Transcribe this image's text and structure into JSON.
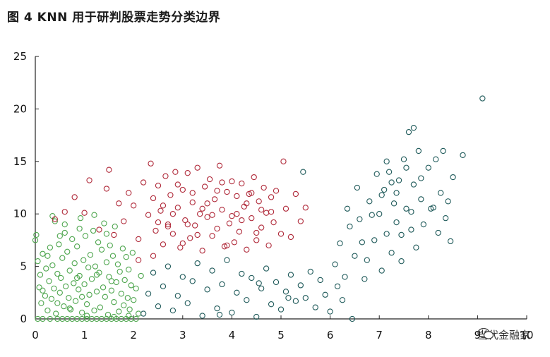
{
  "title": "图 4  KNN 用于研判股票走势分类边界",
  "watermark": {
    "text": "当代金融家"
  },
  "chart_data": {
    "type": "scatter",
    "title": "图 4  KNN 用于研判股票走势分类边界",
    "xlabel": "",
    "ylabel": "",
    "xlim": [
      0,
      10
    ],
    "ylim": [
      0,
      25
    ],
    "x_ticks": [
      "0",
      "1",
      "2",
      "3",
      "4",
      "5",
      "6",
      "7",
      "8",
      "9",
      "10"
    ],
    "y_ticks": [
      "0",
      "5",
      "10",
      "15",
      "20",
      "25"
    ],
    "grid": false,
    "legend": "none",
    "series": [
      {
        "color": "#4ea64e",
        "points": [
          [
            0.05,
            0.0
          ],
          [
            0.15,
            0.0
          ],
          [
            0.3,
            0.0
          ],
          [
            0.45,
            0.0
          ],
          [
            0.55,
            0.0
          ],
          [
            0.65,
            0.0
          ],
          [
            0.75,
            0.0
          ],
          [
            0.85,
            0.0
          ],
          [
            0.95,
            0.0
          ],
          [
            1.05,
            0.0
          ],
          [
            1.15,
            0.0
          ],
          [
            1.25,
            0.0
          ],
          [
            1.35,
            0.0
          ],
          [
            1.45,
            0.0
          ],
          [
            1.55,
            0.0
          ],
          [
            1.65,
            0.0
          ],
          [
            1.75,
            0.0
          ],
          [
            1.85,
            0.0
          ],
          [
            1.95,
            0.0
          ],
          [
            2.05,
            0.0
          ],
          [
            0.0,
            7.5
          ],
          [
            0.02,
            8.0
          ],
          [
            0.05,
            5.5
          ],
          [
            0.08,
            3.0
          ],
          [
            0.1,
            4.2
          ],
          [
            0.12,
            1.5
          ],
          [
            0.15,
            6.2
          ],
          [
            0.2,
            2.2
          ],
          [
            0.22,
            4.8
          ],
          [
            0.25,
            0.8
          ],
          [
            0.28,
            3.6
          ],
          [
            0.3,
            6.8
          ],
          [
            0.33,
            1.9
          ],
          [
            0.35,
            5.1
          ],
          [
            0.38,
            2.9
          ],
          [
            0.4,
            9.3
          ],
          [
            0.42,
            0.5
          ],
          [
            0.45,
            4.3
          ],
          [
            0.48,
            7.1
          ],
          [
            0.5,
            2.5
          ],
          [
            0.52,
            3.9
          ],
          [
            0.55,
            5.8
          ],
          [
            0.58,
            1.2
          ],
          [
            0.6,
            8.2
          ],
          [
            0.62,
            3.1
          ],
          [
            0.65,
            6.4
          ],
          [
            0.68,
            2.0
          ],
          [
            0.7,
            4.6
          ],
          [
            0.72,
            0.9
          ],
          [
            0.75,
            7.6
          ],
          [
            0.78,
            3.4
          ],
          [
            0.8,
            5.3
          ],
          [
            0.82,
            1.7
          ],
          [
            0.85,
            6.9
          ],
          [
            0.88,
            2.8
          ],
          [
            0.9,
            4.1
          ],
          [
            0.92,
            9.6
          ],
          [
            0.95,
            0.6
          ],
          [
            0.98,
            5.6
          ],
          [
            1.0,
            3.3
          ],
          [
            1.02,
            7.9
          ],
          [
            1.05,
            1.4
          ],
          [
            1.08,
            4.9
          ],
          [
            1.1,
            2.3
          ],
          [
            1.12,
            6.1
          ],
          [
            1.15,
            3.8
          ],
          [
            1.18,
            8.4
          ],
          [
            1.2,
            0.8
          ],
          [
            1.22,
            5.0
          ],
          [
            1.25,
            2.6
          ],
          [
            1.28,
            7.3
          ],
          [
            1.3,
            4.4
          ],
          [
            1.32,
            1.1
          ],
          [
            1.35,
            6.6
          ],
          [
            1.38,
            3.0
          ],
          [
            1.4,
            9.1
          ],
          [
            1.42,
            2.1
          ],
          [
            1.45,
            5.4
          ],
          [
            1.48,
            0.4
          ],
          [
            1.5,
            4.0
          ],
          [
            1.52,
            7.0
          ],
          [
            1.55,
            2.7
          ],
          [
            1.58,
            6.0
          ],
          [
            1.6,
            1.6
          ],
          [
            1.62,
            8.8
          ],
          [
            1.65,
            3.5
          ],
          [
            1.68,
            5.2
          ],
          [
            1.7,
            0.7
          ],
          [
            1.72,
            4.5
          ],
          [
            1.75,
            2.4
          ],
          [
            1.78,
            6.7
          ],
          [
            1.8,
            1.3
          ],
          [
            1.82,
            3.7
          ],
          [
            1.85,
            5.9
          ],
          [
            1.88,
            2.0
          ],
          [
            1.9,
            4.7
          ],
          [
            1.92,
            0.9
          ],
          [
            1.95,
            3.2
          ],
          [
            1.98,
            6.3
          ],
          [
            2.0,
            1.8
          ],
          [
            2.05,
            2.9
          ],
          [
            2.1,
            0.5
          ],
          [
            2.15,
            4.1
          ],
          [
            0.35,
            9.8
          ],
          [
            0.6,
            9.0
          ],
          [
            0.9,
            8.6
          ],
          [
            1.2,
            9.9
          ],
          [
            0.5,
            7.9
          ],
          [
            1.45,
            8.1
          ],
          [
            0.25,
            6.0
          ],
          [
            0.15,
            2.7
          ],
          [
            0.7,
            1.0
          ],
          [
            1.05,
            0.3
          ],
          [
            1.6,
            0.2
          ],
          [
            1.9,
            0.3
          ],
          [
            0.45,
            1.5
          ],
          [
            0.85,
            3.9
          ],
          [
            1.25,
            4.2
          ],
          [
            1.55,
            3.6
          ],
          [
            0.95,
            2.1
          ]
        ]
      },
      {
        "color": "#b02a3a",
        "points": [
          [
            0.4,
            9.5
          ],
          [
            0.6,
            10.2
          ],
          [
            0.8,
            11.6
          ],
          [
            1.0,
            10.1
          ],
          [
            1.1,
            13.2
          ],
          [
            1.3,
            8.5
          ],
          [
            1.45,
            12.4
          ],
          [
            1.5,
            14.2
          ],
          [
            1.6,
            8.0
          ],
          [
            1.7,
            11.0
          ],
          [
            1.8,
            9.3
          ],
          [
            1.9,
            12.0
          ],
          [
            2.0,
            10.8
          ],
          [
            2.1,
            7.6
          ],
          [
            2.2,
            13.0
          ],
          [
            2.3,
            9.9
          ],
          [
            2.35,
            14.8
          ],
          [
            2.4,
            11.5
          ],
          [
            2.45,
            8.4
          ],
          [
            2.5,
            12.7
          ],
          [
            2.55,
            10.3
          ],
          [
            2.6,
            7.1
          ],
          [
            2.65,
            13.6
          ],
          [
            2.7,
            9.0
          ],
          [
            2.75,
            11.8
          ],
          [
            2.8,
            8.1
          ],
          [
            2.85,
            14.0
          ],
          [
            2.9,
            10.6
          ],
          [
            2.95,
            6.8
          ],
          [
            3.0,
            12.3
          ],
          [
            3.05,
            9.4
          ],
          [
            3.1,
            13.9
          ],
          [
            3.15,
            7.7
          ],
          [
            3.2,
            11.1
          ],
          [
            3.25,
            8.9
          ],
          [
            3.3,
            14.4
          ],
          [
            3.35,
            10.0
          ],
          [
            3.4,
            6.5
          ],
          [
            3.45,
            12.6
          ],
          [
            3.5,
            9.7
          ],
          [
            3.55,
            13.3
          ],
          [
            3.6,
            7.9
          ],
          [
            3.65,
            11.4
          ],
          [
            3.7,
            8.6
          ],
          [
            3.75,
            14.6
          ],
          [
            3.8,
            10.4
          ],
          [
            3.85,
            6.9
          ],
          [
            3.9,
            12.1
          ],
          [
            3.95,
            9.1
          ],
          [
            4.0,
            13.1
          ],
          [
            4.05,
            7.3
          ],
          [
            4.1,
            11.7
          ],
          [
            4.15,
            8.3
          ],
          [
            4.2,
            12.9
          ],
          [
            4.25,
            10.7
          ],
          [
            4.3,
            6.6
          ],
          [
            4.35,
            11.9
          ],
          [
            4.4,
            9.6
          ],
          [
            4.45,
            13.5
          ],
          [
            4.5,
            7.5
          ],
          [
            4.55,
            11.2
          ],
          [
            4.6,
            8.7
          ],
          [
            4.65,
            12.5
          ],
          [
            4.7,
            10.1
          ],
          [
            4.75,
            7.0
          ],
          [
            4.8,
            11.6
          ],
          [
            4.85,
            9.2
          ],
          [
            4.9,
            12.2
          ],
          [
            5.0,
            8.1
          ],
          [
            5.05,
            15.0
          ],
          [
            5.1,
            10.5
          ],
          [
            5.2,
            7.8
          ],
          [
            5.3,
            11.9
          ],
          [
            5.4,
            9.3
          ],
          [
            5.5,
            10.6
          ],
          [
            2.1,
            5.6
          ],
          [
            2.4,
            6.0
          ],
          [
            2.7,
            8.8
          ],
          [
            3.0,
            7.2
          ],
          [
            3.3,
            8.0
          ],
          [
            3.6,
            9.9
          ],
          [
            3.9,
            7.0
          ],
          [
            4.2,
            9.4
          ],
          [
            4.5,
            8.2
          ],
          [
            4.8,
            10.2
          ],
          [
            3.2,
            12.0
          ],
          [
            3.5,
            11.0
          ],
          [
            3.8,
            13.0
          ],
          [
            4.1,
            10.0
          ],
          [
            4.4,
            12.0
          ],
          [
            2.6,
            10.8
          ],
          [
            2.9,
            12.8
          ],
          [
            3.1,
            9.0
          ],
          [
            3.4,
            10.5
          ],
          [
            3.7,
            12.2
          ],
          [
            4.0,
            9.8
          ],
          [
            4.3,
            11.0
          ],
          [
            4.6,
            10.4
          ],
          [
            2.5,
            9.2
          ],
          [
            2.8,
            10.0
          ]
        ]
      },
      {
        "color": "#1f5a5a",
        "points": [
          [
            2.2,
            0.5
          ],
          [
            2.3,
            2.4
          ],
          [
            2.4,
            4.4
          ],
          [
            2.5,
            1.2
          ],
          [
            2.6,
            3.1
          ],
          [
            2.7,
            5.0
          ],
          [
            2.8,
            0.8
          ],
          [
            2.9,
            2.2
          ],
          [
            3.0,
            4.0
          ],
          [
            3.1,
            1.5
          ],
          [
            3.2,
            3.6
          ],
          [
            3.3,
            5.3
          ],
          [
            3.4,
            0.3
          ],
          [
            3.5,
            2.8
          ],
          [
            3.6,
            4.6
          ],
          [
            3.7,
            1.0
          ],
          [
            3.8,
            3.3
          ],
          [
            3.9,
            5.6
          ],
          [
            4.0,
            0.6
          ],
          [
            4.1,
            2.5
          ],
          [
            4.2,
            4.3
          ],
          [
            4.3,
            1.8
          ],
          [
            4.4,
            3.9
          ],
          [
            4.5,
            0.2
          ],
          [
            4.6,
            2.9
          ],
          [
            4.7,
            4.8
          ],
          [
            4.8,
            1.4
          ],
          [
            4.9,
            3.5
          ],
          [
            5.0,
            0.9
          ],
          [
            5.1,
            2.6
          ],
          [
            5.2,
            4.2
          ],
          [
            5.3,
            1.7
          ],
          [
            5.4,
            3.2
          ],
          [
            5.5,
            2.0
          ],
          [
            5.6,
            4.5
          ],
          [
            5.7,
            1.1
          ],
          [
            5.8,
            3.7
          ],
          [
            5.9,
            2.3
          ],
          [
            6.0,
            0.7
          ],
          [
            6.1,
            5.2
          ],
          [
            6.2,
            7.2
          ],
          [
            6.3,
            4.0
          ],
          [
            6.4,
            8.8
          ],
          [
            6.5,
            6.0
          ],
          [
            6.6,
            9.5
          ],
          [
            6.7,
            3.8
          ],
          [
            6.8,
            11.2
          ],
          [
            6.9,
            7.5
          ],
          [
            7.0,
            10.0
          ],
          [
            7.05,
            4.6
          ],
          [
            7.1,
            12.3
          ],
          [
            7.15,
            8.1
          ],
          [
            7.2,
            14.0
          ],
          [
            7.25,
            6.3
          ],
          [
            7.3,
            11.0
          ],
          [
            7.35,
            9.2
          ],
          [
            7.4,
            13.2
          ],
          [
            7.45,
            5.5
          ],
          [
            7.5,
            15.2
          ],
          [
            7.55,
            10.5
          ],
          [
            7.6,
            17.8
          ],
          [
            7.65,
            8.5
          ],
          [
            7.7,
            12.8
          ],
          [
            7.75,
            6.8
          ],
          [
            7.8,
            16.0
          ],
          [
            7.85,
            11.4
          ],
          [
            7.9,
            9.0
          ],
          [
            8.0,
            14.4
          ],
          [
            8.1,
            10.6
          ],
          [
            8.2,
            8.2
          ],
          [
            8.25,
            12.0
          ],
          [
            8.3,
            16.0
          ],
          [
            8.4,
            11.2
          ],
          [
            8.45,
            7.4
          ],
          [
            8.5,
            13.5
          ],
          [
            8.7,
            15.6
          ],
          [
            9.1,
            21.0
          ],
          [
            6.15,
            3.1
          ],
          [
            6.35,
            10.5
          ],
          [
            6.55,
            12.5
          ],
          [
            6.75,
            5.6
          ],
          [
            6.95,
            13.8
          ],
          [
            7.15,
            15.0
          ],
          [
            7.35,
            12.0
          ],
          [
            7.55,
            14.4
          ],
          [
            7.7,
            18.2
          ],
          [
            8.05,
            10.5
          ],
          [
            8.15,
            15.2
          ],
          [
            5.45,
            14.0
          ],
          [
            5.15,
            2.0
          ],
          [
            4.55,
            3.4
          ],
          [
            3.75,
            0.4
          ],
          [
            6.45,
            0.0
          ],
          [
            6.65,
            7.3
          ],
          [
            6.85,
            9.9
          ],
          [
            7.05,
            11.8
          ],
          [
            7.25,
            13.0
          ],
          [
            7.45,
            8.0
          ],
          [
            7.65,
            10.2
          ],
          [
            7.85,
            13.4
          ],
          [
            8.35,
            9.6
          ],
          [
            6.25,
            1.8
          ]
        ]
      }
    ]
  }
}
